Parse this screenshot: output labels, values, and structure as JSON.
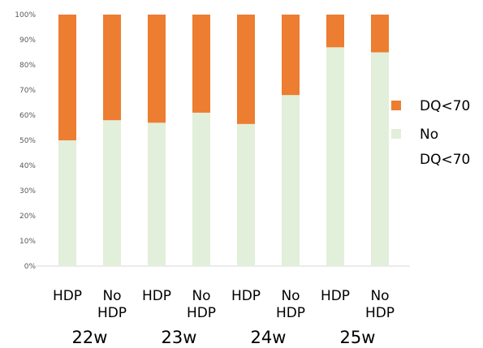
{
  "chart_data": {
    "type": "bar",
    "stacked": true,
    "percent": true,
    "categories": [
      "HDP",
      "No HDP",
      "HDP",
      "No HDP",
      "HDP",
      "No HDP",
      "HDP",
      "No HDP"
    ],
    "groups": [
      "22w",
      "23w",
      "24w",
      "25w"
    ],
    "series": [
      {
        "name": "No DQ<70",
        "color": "#e2efda",
        "values": [
          50,
          58,
          57,
          61,
          56.5,
          68,
          87,
          85
        ]
      },
      {
        "name": "DQ<70",
        "color": "#ed7d31",
        "values": [
          50,
          42,
          43,
          39,
          43.5,
          32,
          13,
          15
        ]
      }
    ],
    "ylim": [
      0,
      100
    ],
    "yticks": [
      "0%",
      "10%",
      "20%",
      "30%",
      "40%",
      "50%",
      "60%",
      "70%",
      "80%",
      "90%",
      "100%"
    ],
    "grid": false,
    "legend_position": "right",
    "legend_lines": [
      [
        "DQ<70"
      ],
      [
        "No",
        "DQ<70"
      ]
    ]
  }
}
